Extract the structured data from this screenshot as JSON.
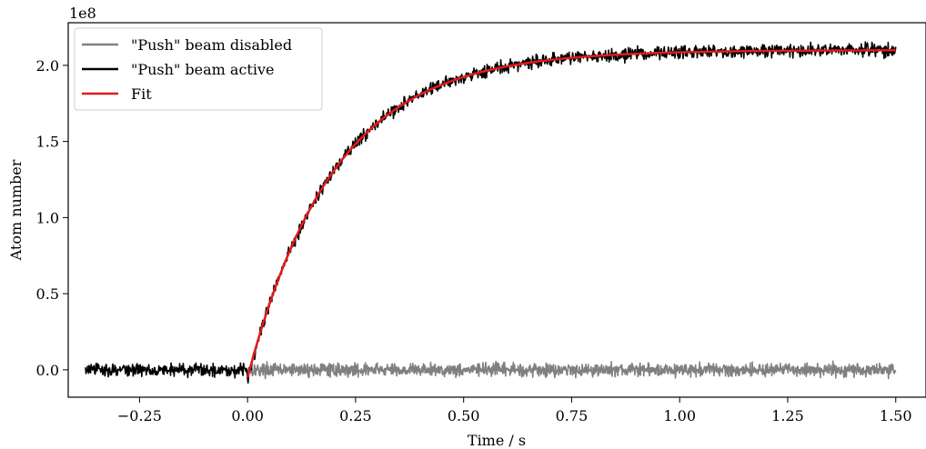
{
  "chart_data": {
    "type": "line",
    "xlabel": "Time / s",
    "ylabel": "Atom number",
    "y_offset_text": "1e8",
    "xlim": [
      -0.415,
      1.57
    ],
    "ylim": [
      -0.18,
      2.28
    ],
    "x_ticks": [
      -0.25,
      0.0,
      0.25,
      0.5,
      0.75,
      1.0,
      1.25,
      1.5
    ],
    "x_tick_labels": [
      "−0.25",
      "0.00",
      "0.25",
      "0.50",
      "0.75",
      "1.00",
      "1.25",
      "1.50"
    ],
    "y_ticks": [
      0.0,
      0.5,
      1.0,
      1.5,
      2.0
    ],
    "y_tick_labels": [
      "0.0",
      "0.5",
      "1.0",
      "1.5",
      "2.0"
    ],
    "grid": false,
    "legend_position": "top-left",
    "series": [
      {
        "name": "\"Push\" beam disabled",
        "color": "#808080",
        "model": "noise",
        "x_range": [
          0.0,
          1.5
        ],
        "baseline": 0.0,
        "noise_amplitude": 0.035
      },
      {
        "name": "\"Push\" beam active",
        "color": "#000000",
        "model": "exponential_loading_with_noise",
        "x_range": [
          -0.375,
          1.5
        ],
        "pre_start_baseline": 0.0,
        "load_start": 0.0,
        "start_value": -0.05,
        "saturation": 2.1,
        "time_constant": 0.2,
        "noise_amplitude": 0.035
      },
      {
        "name": "Fit",
        "color": "#e41a1c",
        "model": "exponential_loading",
        "x_range": [
          0.0,
          1.5
        ],
        "start_value": -0.05,
        "saturation": 2.1,
        "time_constant": 0.2
      }
    ]
  }
}
